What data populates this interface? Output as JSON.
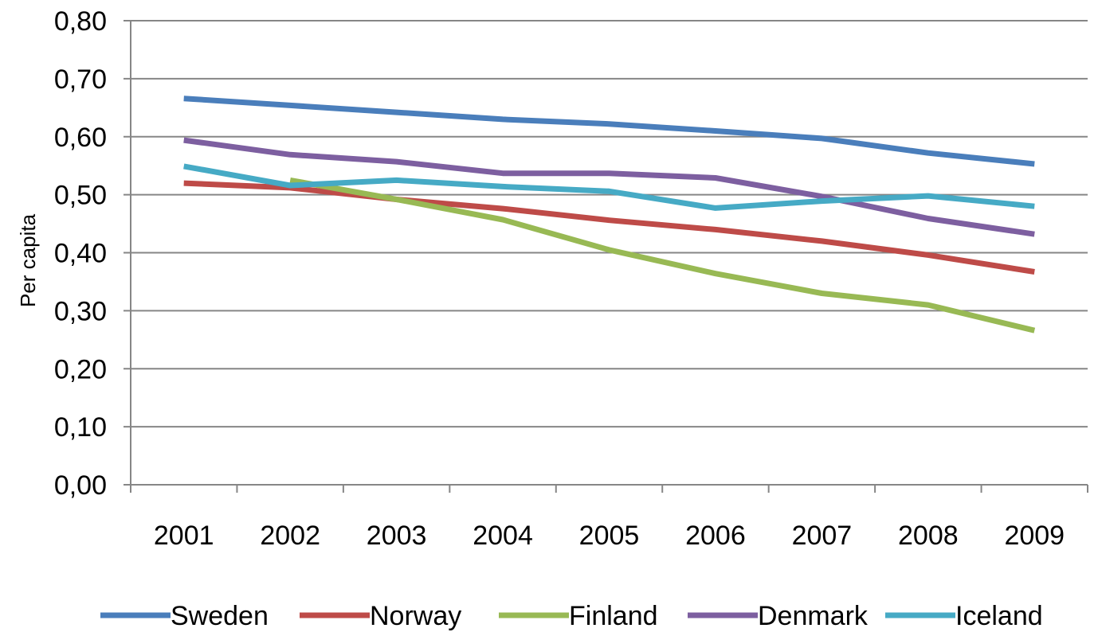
{
  "chart_data": {
    "type": "line",
    "title": "",
    "xlabel": "",
    "ylabel": "Per capita",
    "categories": [
      "2001",
      "2002",
      "2003",
      "2004",
      "2005",
      "2006",
      "2007",
      "2008",
      "2009"
    ],
    "ylim": [
      0,
      0.8
    ],
    "yticks": [
      0,
      0.1,
      0.2,
      0.3,
      0.4,
      0.5,
      0.6,
      0.7,
      0.8
    ],
    "ytick_labels": [
      "0,00",
      "0,10",
      "0,20",
      "0,30",
      "0,40",
      "0,50",
      "0,60",
      "0,70",
      "0,80"
    ],
    "grid": true,
    "legend_position": "bottom",
    "series": [
      {
        "name": "Sweden",
        "color": "#4a7ebb",
        "values": [
          0.666,
          0.654,
          0.642,
          0.63,
          0.622,
          0.61,
          0.597,
          0.572,
          0.553
        ]
      },
      {
        "name": "Norway",
        "color": "#be4b48",
        "values": [
          0.52,
          0.512,
          0.492,
          0.476,
          0.456,
          0.44,
          0.42,
          0.396,
          0.367
        ]
      },
      {
        "name": "Finland",
        "color": "#98b954",
        "values": [
          null,
          0.525,
          0.492,
          0.457,
          0.405,
          0.364,
          0.33,
          0.31,
          0.266
        ]
      },
      {
        "name": "Denmark",
        "color": "#7d5fa0",
        "values": [
          0.594,
          0.569,
          0.557,
          0.537,
          0.537,
          0.529,
          0.497,
          0.459,
          0.432
        ]
      },
      {
        "name": "Iceland",
        "color": "#46aac5",
        "values": [
          0.549,
          0.516,
          0.525,
          0.514,
          0.506,
          0.477,
          0.489,
          0.498,
          0.48
        ]
      }
    ]
  }
}
